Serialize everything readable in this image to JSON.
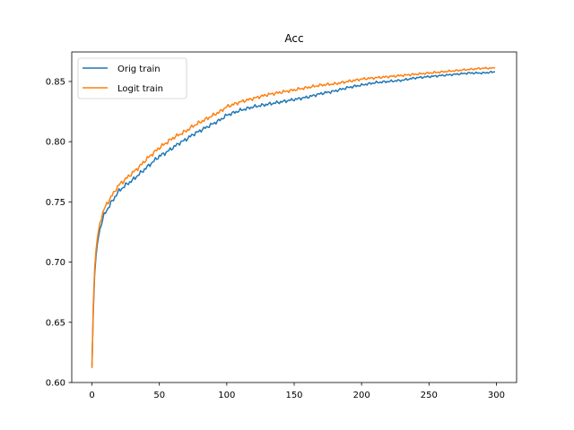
{
  "chart_data": {
    "type": "line",
    "title": "Acc",
    "xlabel": "",
    "ylabel": "",
    "xlim": [
      -15,
      315
    ],
    "ylim": [
      0.6,
      0.8745
    ],
    "xticks": [
      0,
      50,
      100,
      150,
      200,
      250,
      300
    ],
    "yticks": [
      0.6,
      0.65,
      0.7,
      0.75,
      0.8,
      0.85
    ],
    "xtick_labels": [
      "0",
      "50",
      "100",
      "150",
      "200",
      "250",
      "300"
    ],
    "ytick_labels": [
      "0.60",
      "0.65",
      "0.70",
      "0.75",
      "0.80",
      "0.85"
    ],
    "grid": false,
    "legend_position": "upper-left",
    "x": [
      0,
      1,
      2,
      3,
      4,
      5,
      6,
      7,
      8,
      9,
      10,
      12,
      14,
      16,
      18,
      20,
      25,
      30,
      35,
      40,
      45,
      50,
      55,
      60,
      65,
      70,
      75,
      80,
      85,
      90,
      95,
      100,
      110,
      120,
      130,
      140,
      150,
      160,
      170,
      180,
      190,
      200,
      210,
      220,
      230,
      240,
      250,
      260,
      270,
      280,
      290,
      299
    ],
    "series": [
      {
        "name": "Orig train",
        "color": "#1f77b4",
        "values": [
          0.614,
          0.66,
          0.69,
          0.705,
          0.715,
          0.722,
          0.728,
          0.732,
          0.736,
          0.739,
          0.741,
          0.745,
          0.749,
          0.752,
          0.756,
          0.759,
          0.764,
          0.768,
          0.773,
          0.778,
          0.783,
          0.788,
          0.791,
          0.795,
          0.799,
          0.802,
          0.806,
          0.809,
          0.812,
          0.815,
          0.818,
          0.822,
          0.826,
          0.829,
          0.831,
          0.833,
          0.835,
          0.837,
          0.84,
          0.842,
          0.845,
          0.847,
          0.849,
          0.85,
          0.851,
          0.853,
          0.854,
          0.855,
          0.856,
          0.857,
          0.857,
          0.858
        ]
      },
      {
        "name": "Logit train",
        "color": "#ff7f0e",
        "values": [
          0.612,
          0.665,
          0.695,
          0.71,
          0.72,
          0.727,
          0.733,
          0.737,
          0.741,
          0.744,
          0.746,
          0.75,
          0.754,
          0.757,
          0.761,
          0.764,
          0.769,
          0.774,
          0.779,
          0.785,
          0.79,
          0.795,
          0.799,
          0.803,
          0.806,
          0.809,
          0.813,
          0.816,
          0.819,
          0.822,
          0.825,
          0.829,
          0.833,
          0.836,
          0.839,
          0.841,
          0.843,
          0.845,
          0.847,
          0.848,
          0.85,
          0.852,
          0.853,
          0.854,
          0.855,
          0.856,
          0.857,
          0.858,
          0.859,
          0.86,
          0.861,
          0.861
        ]
      }
    ]
  }
}
